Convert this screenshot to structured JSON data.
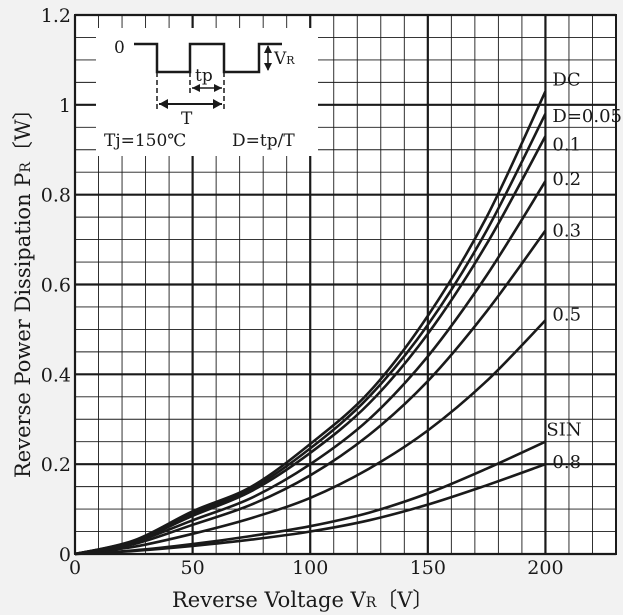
{
  "chart_data": {
    "type": "line",
    "xlabel": "Reverse Voltage V",
    "xlabel_sub": "R",
    "xlabel_unit": "〔V〕",
    "ylabel": "Reverse Power Dissipation P",
    "ylabel_sub": "R",
    "ylabel_unit": "〔W〕",
    "xlim": [
      0,
      230
    ],
    "ylim": [
      0,
      1.2
    ],
    "x_ticks": [
      0,
      50,
      100,
      150,
      200
    ],
    "x_tick_labels": [
      "0",
      "50",
      "100",
      "150",
      "200"
    ],
    "y_ticks": [
      0,
      0.2,
      0.4,
      0.6,
      0.8,
      1.0,
      1.2
    ],
    "y_tick_labels": [
      "0",
      "0.2",
      "0.4",
      "0.6",
      "0.8",
      "1",
      "1.2"
    ],
    "grid": true,
    "minor_grid": {
      "x_step": 10,
      "y_step": 0.05
    },
    "series": [
      {
        "name": "DC",
        "x": [
          0,
          25,
          50,
          75,
          100,
          125,
          150,
          175,
          200
        ],
        "y": [
          0,
          0.03,
          0.095,
          0.15,
          0.245,
          0.36,
          0.53,
          0.75,
          1.03
        ]
      },
      {
        "name": "D=0.05",
        "x": [
          0,
          25,
          50,
          75,
          100,
          125,
          150,
          175,
          200
        ],
        "y": [
          0,
          0.029,
          0.09,
          0.145,
          0.235,
          0.35,
          0.51,
          0.72,
          0.98
        ]
      },
      {
        "name": "0.1",
        "x": [
          0,
          25,
          50,
          75,
          100,
          125,
          150,
          175,
          200
        ],
        "y": [
          0,
          0.028,
          0.085,
          0.14,
          0.225,
          0.335,
          0.49,
          0.69,
          0.93
        ]
      },
      {
        "name": "0.2",
        "x": [
          0,
          25,
          50,
          75,
          100,
          125,
          150,
          175,
          200
        ],
        "y": [
          0,
          0.026,
          0.075,
          0.125,
          0.2,
          0.3,
          0.44,
          0.62,
          0.83
        ]
      },
      {
        "name": "0.3",
        "x": [
          0,
          25,
          50,
          75,
          100,
          125,
          150,
          175,
          200
        ],
        "y": [
          0,
          0.022,
          0.065,
          0.11,
          0.175,
          0.265,
          0.385,
          0.54,
          0.72
        ]
      },
      {
        "name": "0.5",
        "x": [
          0,
          25,
          50,
          75,
          100,
          125,
          150,
          175,
          200
        ],
        "y": [
          0,
          0.016,
          0.045,
          0.08,
          0.125,
          0.19,
          0.275,
          0.385,
          0.52
        ]
      },
      {
        "name": "SIN",
        "x": [
          0,
          25,
          50,
          75,
          100,
          125,
          150,
          175,
          200
        ],
        "y": [
          0,
          0.008,
          0.022,
          0.04,
          0.062,
          0.092,
          0.135,
          0.19,
          0.25
        ]
      },
      {
        "name": "0.8",
        "x": [
          0,
          25,
          50,
          75,
          100,
          125,
          150,
          175,
          200
        ],
        "y": [
          0,
          0.007,
          0.018,
          0.032,
          0.05,
          0.075,
          0.11,
          0.153,
          0.2
        ]
      }
    ],
    "inset": {
      "zero_label": "0",
      "vr_label": "V",
      "vr_sub": "R",
      "tp_label": "tp",
      "t_label": "T",
      "tj_label": "Tj=150℃",
      "duty_label": "D=tp/T"
    }
  }
}
